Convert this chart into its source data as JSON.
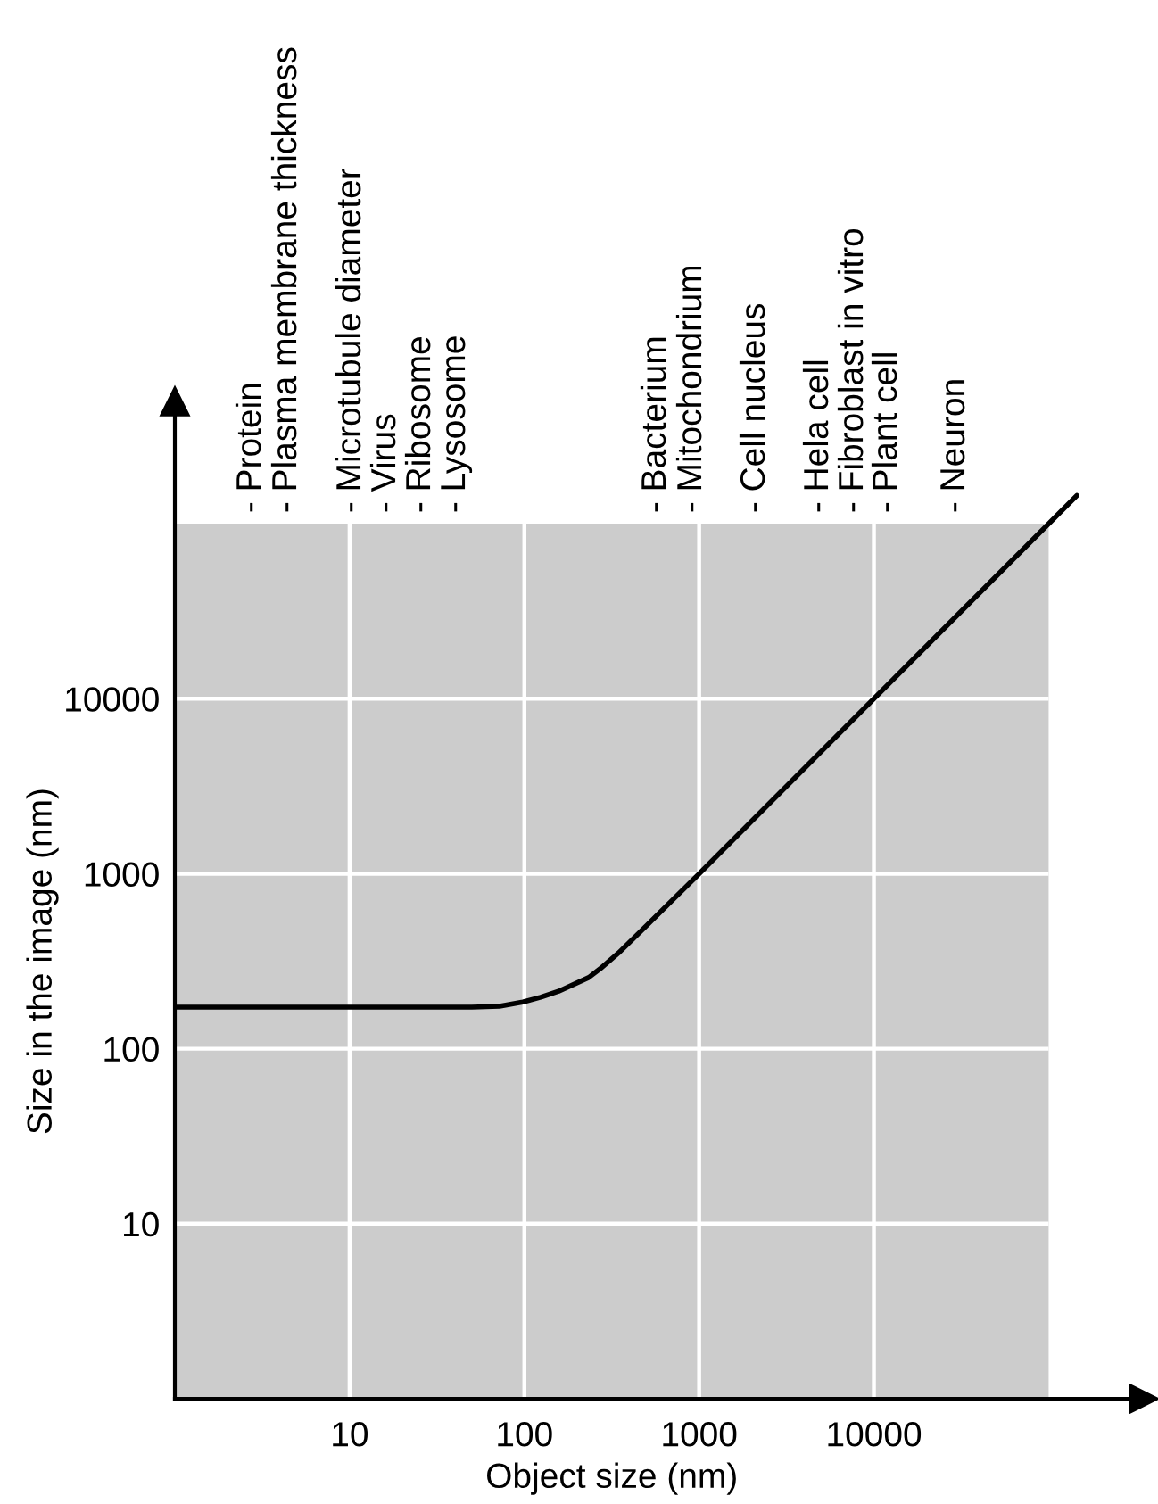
{
  "chart_data": {
    "type": "line",
    "xlabel": "Object size (nm)",
    "ylabel": "Size in the image (nm)",
    "series": [
      {
        "color": "#000000",
        "x": [
          1,
          50,
          72,
          98,
          124,
          157,
          233,
          272,
          345,
          510,
          1000,
          10000,
          145000
        ],
        "values": [
          173,
          173,
          175,
          185,
          197,
          213,
          255,
          287,
          352,
          515,
          1000,
          10000,
          145000
        ]
      }
    ],
    "log": "xy",
    "xlim": [
      1,
      350000
    ],
    "ylim": [
      1,
      500000
    ],
    "xticks": [
      10,
      100,
      1000,
      10000
    ],
    "yticks": [
      10,
      100,
      1000,
      10000
    ],
    "grid": true,
    "bands": [
      {
        "axis": "x",
        "from": 1,
        "to": 100000,
        "color": "#cccccc"
      }
    ],
    "annotations": [
      "- Protein",
      "- Plasma membrane thickness",
      "- Microtubule diameter",
      "- Virus",
      "- Ribosome",
      "- Lysosome",
      "- Bacterium",
      "- Mitochondrium",
      "- Cell nucleus",
      "- Hela cell",
      "- Fibroblast in vitro",
      "- Plant cell",
      "- Neuron"
    ]
  }
}
